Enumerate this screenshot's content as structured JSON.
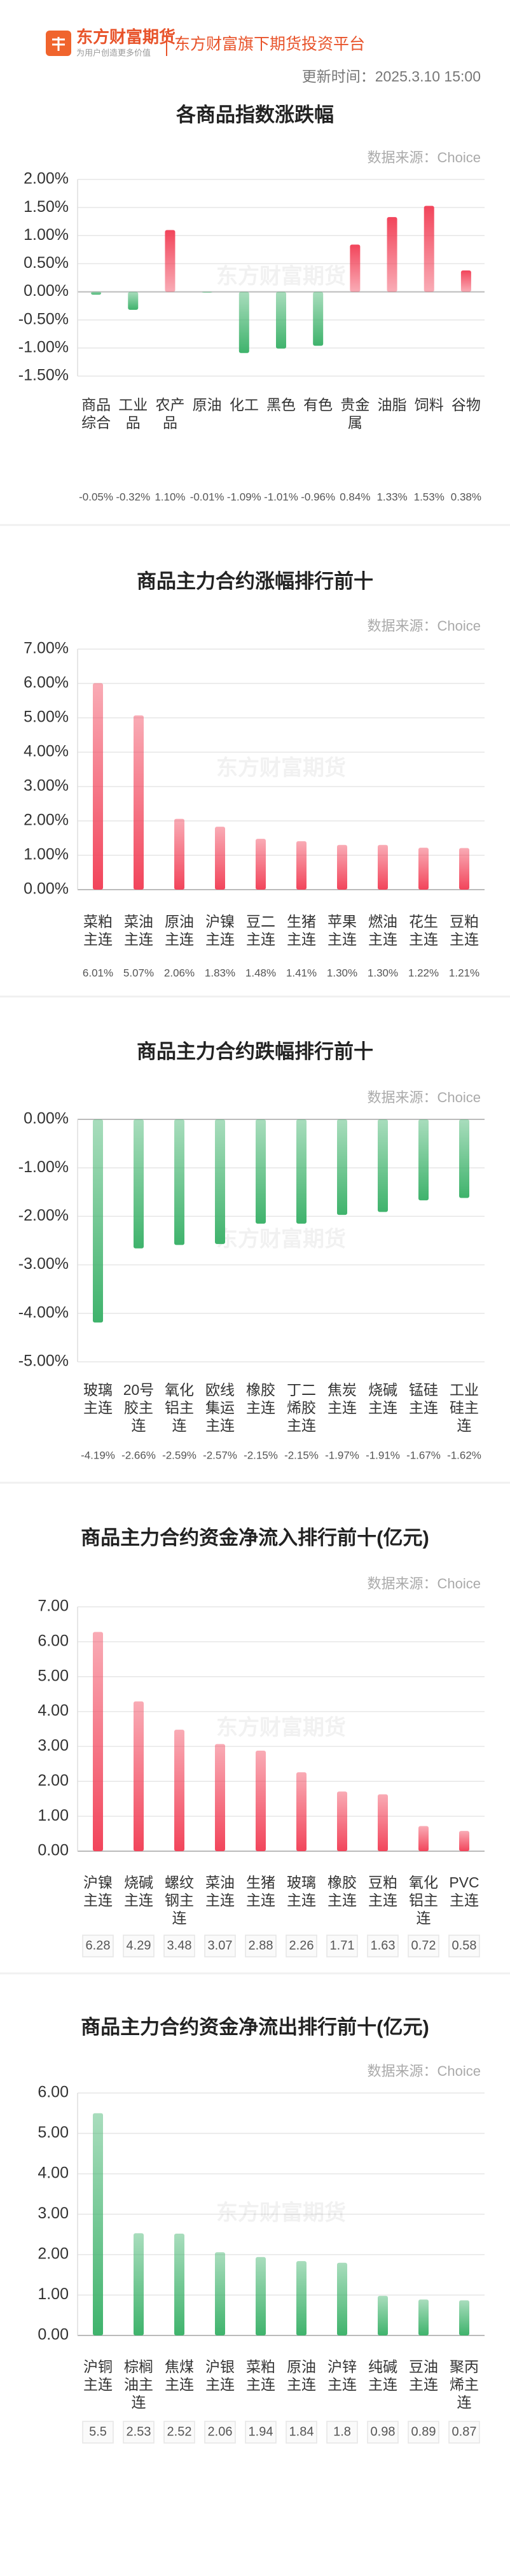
{
  "header": {
    "brand": "东方财富期货",
    "slogan": "为用户创造更多价值",
    "platform": "东方财富旗下期货投资平台",
    "update_time": "更新时间：2025.3.10 15:00",
    "watermark": "东方财富期货"
  },
  "chart_data": [
    {
      "type": "bar",
      "title": "各商品指数涨跌幅",
      "source": "数据来源：Choice",
      "categories": [
        "商品综合",
        "工业品",
        "农产品",
        "原油",
        "化工",
        "黑色",
        "有色",
        "贵金属",
        "油脂",
        "饲料",
        "谷物"
      ],
      "values": [
        -0.05,
        -0.32,
        1.1,
        -0.01,
        -1.09,
        -1.01,
        -0.96,
        0.84,
        1.33,
        1.53,
        0.38
      ],
      "value_labels": [
        "-0.05%",
        "-0.32%",
        "1.10%",
        "-0.01%",
        "-1.09%",
        "-1.01%",
        "-0.96%",
        "0.84%",
        "1.33%",
        "1.53%",
        "0.38%"
      ],
      "color": "#f2455b",
      "negative_color": "#3fb36c",
      "ylim": [
        -1.5,
        2
      ],
      "yticks": [
        {
          "value": -1.5,
          "label": "-1.50%"
        },
        {
          "value": -1,
          "label": "-1.00%"
        },
        {
          "value": -0.5,
          "label": "-0.50%"
        },
        {
          "value": 0,
          "label": "0.00%"
        },
        {
          "value": 0.5,
          "label": "0.50%"
        },
        {
          "value": 1,
          "label": "1.00%"
        },
        {
          "value": 1.5,
          "label": "1.50%"
        },
        {
          "value": 2,
          "label": "2.00%"
        }
      ],
      "grid": true
    },
    {
      "type": "bar",
      "title": "商品主力合约涨幅排行前十",
      "source": "数据来源：Choice",
      "categories": [
        "菜粕主连",
        "菜油主连",
        "原油主连",
        "沪镍主连",
        "豆二主连",
        "生猪主连",
        "苹果主连",
        "燃油主连",
        "花生主连",
        "豆粕主连"
      ],
      "values": [
        6.01,
        5.07,
        2.06,
        1.83,
        1.48,
        1.41,
        1.3,
        1.3,
        1.22,
        1.21
      ],
      "value_labels": [
        "6.01%",
        "5.07%",
        "2.06%",
        "1.83%",
        "1.48%",
        "1.41%",
        "1.30%",
        "1.30%",
        "1.22%",
        "1.21%"
      ],
      "color": "#f2455b",
      "ylim": [
        0,
        7
      ],
      "yticks": [
        {
          "value": 0,
          "label": "0.00%"
        },
        {
          "value": 1,
          "label": "1.00%"
        },
        {
          "value": 2,
          "label": "2.00%"
        },
        {
          "value": 3,
          "label": "3.00%"
        },
        {
          "value": 4,
          "label": "4.00%"
        },
        {
          "value": 5,
          "label": "5.00%"
        },
        {
          "value": 6,
          "label": "6.00%"
        },
        {
          "value": 7,
          "label": "7.00%"
        }
      ],
      "grid": true
    },
    {
      "type": "bar",
      "title": "商品主力合约跌幅排行前十",
      "source": "数据来源：Choice",
      "categories": [
        "玻璃主连",
        "20号胶主连",
        "氧化铝主连",
        "欧线集运主连",
        "橡胶主连",
        "丁二烯胶主连",
        "焦炭主连",
        "烧碱主连",
        "锰硅主连",
        "工业硅主连"
      ],
      "values": [
        -4.19,
        -2.66,
        -2.59,
        -2.57,
        -2.15,
        -2.15,
        -1.97,
        -1.91,
        -1.67,
        -1.62
      ],
      "value_labels": [
        "-4.19%",
        "-2.66%",
        "-2.59%",
        "-2.57%",
        "-2.15%",
        "-2.15%",
        "-1.97%",
        "-1.91%",
        "-1.67%",
        "-1.62%"
      ],
      "color": "#3fb36c",
      "ylim": [
        -5,
        0
      ],
      "yticks": [
        {
          "value": -5,
          "label": "-5.00%"
        },
        {
          "value": -4,
          "label": "-4.00%"
        },
        {
          "value": -3,
          "label": "-3.00%"
        },
        {
          "value": -2,
          "label": "-2.00%"
        },
        {
          "value": -1,
          "label": "-1.00%"
        },
        {
          "value": 0,
          "label": "0.00%"
        }
      ],
      "grid": true
    },
    {
      "type": "bar",
      "title": "商品主力合约资金净流入排行前十(亿元)",
      "source": "数据来源：Choice",
      "categories": [
        "沪镍主连",
        "烧碱主连",
        "螺纹钢主连",
        "菜油主连",
        "生猪主连",
        "玻璃主连",
        "橡胶主连",
        "豆粕主连",
        "氧化铝主连",
        "PVC主连"
      ],
      "values": [
        6.28,
        4.29,
        3.48,
        3.07,
        2.88,
        2.26,
        1.71,
        1.63,
        0.72,
        0.58
      ],
      "color": "#f2455b",
      "ylim": [
        0,
        7
      ],
      "yticks": [
        {
          "value": 0,
          "label": "0.00"
        },
        {
          "value": 1,
          "label": "1.00"
        },
        {
          "value": 2,
          "label": "2.00"
        },
        {
          "value": 3,
          "label": "3.00"
        },
        {
          "value": 4,
          "label": "4.00"
        },
        {
          "value": 5,
          "label": "5.00"
        },
        {
          "value": 6,
          "label": "6.00"
        },
        {
          "value": 7,
          "label": "7.00"
        }
      ],
      "grid": true
    },
    {
      "type": "bar",
      "title": "商品主力合约资金净流出排行前十(亿元)",
      "source": "数据来源：Choice",
      "categories": [
        "沪铜主连",
        "棕榈油主连",
        "焦煤主连",
        "沪银主连",
        "菜粕主连",
        "原油主连",
        "沪锌主连",
        "纯碱主连",
        "豆油主连",
        "聚丙烯主连"
      ],
      "values": [
        5.5,
        2.53,
        2.52,
        2.06,
        1.94,
        1.84,
        1.8,
        0.98,
        0.89,
        0.87
      ],
      "color": "#3fb36c",
      "ylim": [
        0,
        6
      ],
      "yticks": [
        {
          "value": 0,
          "label": "0.00"
        },
        {
          "value": 1,
          "label": "1.00"
        },
        {
          "value": 2,
          "label": "2.00"
        },
        {
          "value": 3,
          "label": "3.00"
        },
        {
          "value": 4,
          "label": "4.00"
        },
        {
          "value": 5,
          "label": "5.00"
        },
        {
          "value": 6,
          "label": "6.00"
        }
      ],
      "grid": true
    }
  ]
}
